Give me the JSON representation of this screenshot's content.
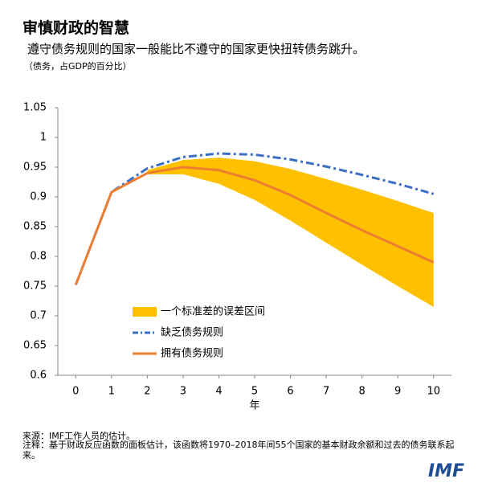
{
  "chart_data": {
    "type": "line",
    "title": "审慎财政的智慧",
    "subtitle": "遵守债务规则的国家一般能比不遵守的国家更快扭转债务跳升。",
    "unit_note": "（债务，占GDP的百分比）",
    "x": [
      0,
      1,
      2,
      3,
      4,
      5,
      6,
      7,
      8,
      9,
      10
    ],
    "xlabel": "年",
    "xlim": [
      -0.5,
      10.5
    ],
    "xticks": [
      0,
      1,
      2,
      3,
      4,
      5,
      6,
      7,
      8,
      9,
      10
    ],
    "ylim": [
      0.6,
      1.05
    ],
    "yticks": [
      0.6,
      0.65,
      0.7,
      0.75,
      0.8,
      0.85,
      0.9,
      0.95,
      1,
      1.05
    ],
    "series": [
      {
        "name": "一个标准差的误差区间",
        "type": "band",
        "color": "#ffc000",
        "upper": [
          null,
          null,
          0.945,
          0.962,
          0.966,
          0.96,
          0.947,
          0.93,
          0.912,
          0.893,
          0.873
        ],
        "lower": [
          null,
          null,
          0.938,
          0.938,
          0.922,
          0.895,
          0.86,
          0.823,
          0.786,
          0.75,
          0.715
        ]
      },
      {
        "name": "缺乏债务规则",
        "type": "line",
        "dash": true,
        "color": "#3a6fc4",
        "values": [
          0.752,
          0.908,
          0.948,
          0.967,
          0.973,
          0.971,
          0.963,
          0.951,
          0.937,
          0.922,
          0.905
        ]
      },
      {
        "name": "拥有债务规则",
        "type": "line",
        "color": "#ed7d31",
        "values": [
          0.752,
          0.908,
          0.94,
          0.95,
          0.945,
          0.928,
          0.903,
          0.873,
          0.844,
          0.817,
          0.79
        ]
      }
    ],
    "source": "来源：IMF工作人员的估计。",
    "note": "注释：基于财政反应函数的面板估计，该函数将1970–2018年间55个国家的基本财政余额和过去的债务联系起来。",
    "logo": "IMF"
  }
}
